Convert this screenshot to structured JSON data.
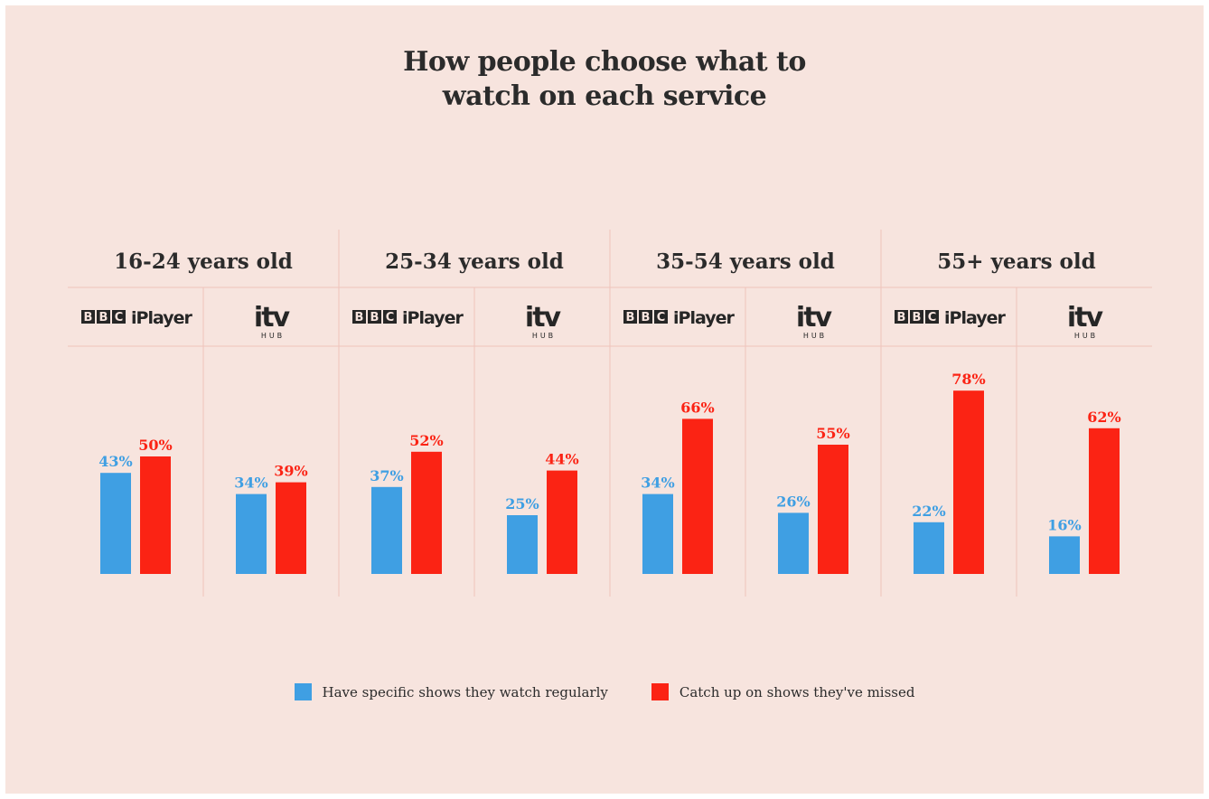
{
  "title_lines": [
    "How people choose what to",
    "watch on each service"
  ],
  "colors": {
    "background": "#f7e4de",
    "blue": "#3f9fe3",
    "red": "#fb2314",
    "grid": "#efc3bb",
    "text": "#2b2b2b"
  },
  "legend": [
    {
      "label": "Have specific shows they watch regularly",
      "color": "#3f9fe3"
    },
    {
      "label": "Catch up on shows they've missed",
      "color": "#fb2314"
    }
  ],
  "chart_data": {
    "type": "bar",
    "value_unit": "%",
    "grid": false,
    "legend_position": "bottom",
    "series": [
      {
        "name": "Have specific shows they watch regularly",
        "color": "#3f9fe3"
      },
      {
        "name": "Catch up on shows they've missed",
        "color": "#fb2314"
      }
    ],
    "groups": [
      {
        "label": "16-24 years old",
        "services": [
          {
            "service": "BBC iPlayer",
            "logo": "bbc-iplayer-logo",
            "values": [
              43,
              50
            ]
          },
          {
            "service": "ITV Hub",
            "logo": "itv-hub-logo",
            "values": [
              34,
              39
            ]
          }
        ]
      },
      {
        "label": "25-34 years old",
        "services": [
          {
            "service": "BBC iPlayer",
            "logo": "bbc-iplayer-logo",
            "values": [
              37,
              52
            ]
          },
          {
            "service": "ITV Hub",
            "logo": "itv-hub-logo",
            "values": [
              25,
              44
            ]
          }
        ]
      },
      {
        "label": "35-54 years old",
        "services": [
          {
            "service": "BBC iPlayer",
            "logo": "bbc-iplayer-logo",
            "values": [
              34,
              66
            ]
          },
          {
            "service": "ITV Hub",
            "logo": "itv-hub-logo",
            "values": [
              26,
              55
            ]
          }
        ]
      },
      {
        "label": "55+ years old",
        "services": [
          {
            "service": "BBC iPlayer",
            "logo": "bbc-iplayer-logo",
            "values": [
              22,
              78
            ]
          },
          {
            "service": "ITV Hub",
            "logo": "itv-hub-logo",
            "values": [
              16,
              62
            ]
          }
        ]
      }
    ]
  }
}
